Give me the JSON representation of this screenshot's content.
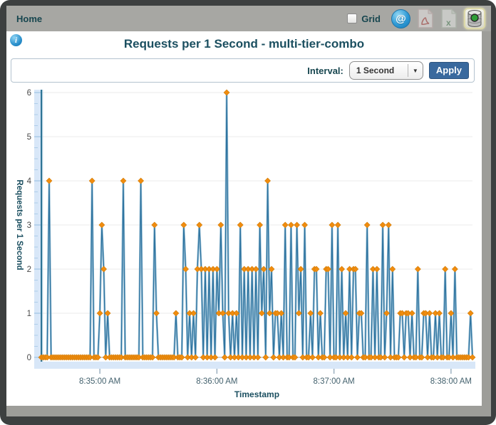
{
  "header": {
    "home_label": "Home",
    "grid_label": "Grid",
    "at_symbol": "@",
    "icons": [
      "at-icon",
      "pdf-export-icon",
      "excel-export-icon",
      "database-record-icon"
    ]
  },
  "title_bar": {
    "title": "Requests per 1 Second - multi-tier-combo",
    "info_glyph": "i"
  },
  "toolbar": {
    "interval_label": "Interval:",
    "interval_value": "1 Second",
    "dropdown_arrow": "▼",
    "apply_label": "Apply"
  },
  "colors": {
    "accent_teal_text": "#1b4f60",
    "line": "#2f74a0",
    "line_halo": "#9ec3d8",
    "marker": "#f18c0e",
    "marker_edge": "#d07c08",
    "gridline": "#ebebeb",
    "zero_line": "#c0c0c0",
    "axis_band": "#d8e7f8",
    "axis_notch": "#aecde9",
    "axis_spine": "#2d7495",
    "tick_text": "#44626e",
    "ytick_text": "#4a4a4a",
    "apply_button": "#39699e",
    "window_border": "#3d4040",
    "frame_gray": "#9d9d99",
    "header_gray": "#a7a7a3"
  },
  "chart_data": {
    "type": "line",
    "title": "Requests per 1 Second - multi-tier-combo",
    "xlabel": "Timestamp",
    "ylabel": "Requests per 1 Second",
    "ylim": [
      0,
      6
    ],
    "yticks": [
      0,
      1,
      2,
      3,
      4,
      5,
      6
    ],
    "grid": "horizontal-only",
    "legend": "none",
    "marker": "diamond",
    "start_time": "8:34:30 AM",
    "interval_seconds": 1,
    "xticks": [
      {
        "index": 30,
        "label": "8:35:00 AM"
      },
      {
        "index": 90,
        "label": "8:36:00 AM"
      },
      {
        "index": 150,
        "label": "8:37:00 AM"
      },
      {
        "index": 210,
        "label": "8:38:00 AM"
      }
    ],
    "series_name": "Requests per 1 Second",
    "values": [
      0,
      0,
      0,
      0,
      4,
      0,
      0,
      0,
      0,
      0,
      0,
      0,
      0,
      0,
      0,
      0,
      0,
      0,
      0,
      0,
      0,
      0,
      0,
      0,
      0,
      0,
      4,
      0,
      0,
      0,
      1,
      3,
      2,
      0,
      1,
      0,
      0,
      0,
      0,
      0,
      0,
      0,
      4,
      0,
      0,
      0,
      0,
      0,
      0,
      0,
      0,
      4,
      0,
      0,
      0,
      0,
      0,
      0,
      3,
      1,
      0,
      0,
      0,
      0,
      0,
      0,
      0,
      0,
      0,
      1,
      0,
      0,
      0,
      3,
      2,
      0,
      1,
      0,
      1,
      0,
      2,
      3,
      2,
      0,
      2,
      0,
      2,
      0,
      2,
      0,
      2,
      1,
      3,
      1,
      0,
      6,
      1,
      0,
      1,
      0,
      1,
      0,
      3,
      0,
      2,
      0,
      2,
      0,
      2,
      0,
      2,
      0,
      3,
      1,
      2,
      0,
      4,
      1,
      2,
      0,
      1,
      1,
      0,
      1,
      0,
      3,
      0,
      0,
      3,
      0,
      0,
      3,
      1,
      2,
      0,
      3,
      0,
      0,
      1,
      0,
      2,
      2,
      0,
      1,
      0,
      0,
      2,
      2,
      0,
      3,
      0,
      0,
      3,
      0,
      2,
      0,
      1,
      0,
      2,
      0,
      2,
      2,
      0,
      1,
      1,
      0,
      0,
      3,
      0,
      0,
      2,
      0,
      2,
      0,
      0,
      3,
      0,
      1,
      3,
      0,
      2,
      0,
      0,
      0,
      1,
      1,
      0,
      1,
      1,
      0,
      1,
      0,
      0,
      2,
      0,
      0,
      1,
      1,
      0,
      1,
      0,
      0,
      1,
      0,
      1,
      0,
      0,
      2,
      0,
      0,
      1,
      0,
      2,
      0,
      0,
      0,
      0,
      0,
      0,
      0,
      1,
      0
    ]
  }
}
